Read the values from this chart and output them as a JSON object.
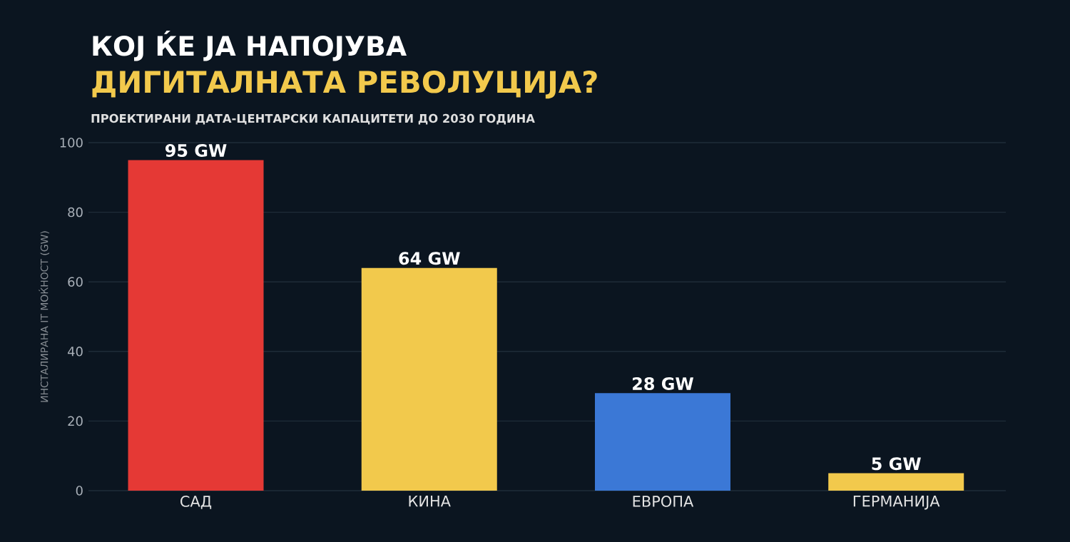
{
  "chart_data": {
    "type": "bar",
    "title": "КОЈ ЌЕ ЈА НАПОЈУВА",
    "subtitle": "ДИГИТАЛНАТА РЕВОЛУЦИЈА?",
    "annotations": [
      "ПРОЕКТИРАНИ ДАТА-ЦЕНТАРСКИ КАПАЦИТЕТИ ДО 2030 ГОДИНА"
    ],
    "ylabel": "ИНСТАЛИРАНА IT МОЌНОСТ (GW)",
    "categories": [
      "САД",
      "КИНА",
      "ЕВРОПА",
      "ГЕРМАНИЈА"
    ],
    "values": [
      95,
      64,
      28,
      5
    ],
    "value_labels": [
      "95 GW",
      "64 GW",
      "28 GW",
      "5 GW"
    ],
    "colors": [
      "#e53935",
      "#f2c94c",
      "#3b78d6",
      "#f2c94c"
    ],
    "ylim": [
      0,
      100
    ],
    "yticks": [
      0,
      20,
      40,
      60,
      80,
      100
    ],
    "grid": "y"
  }
}
